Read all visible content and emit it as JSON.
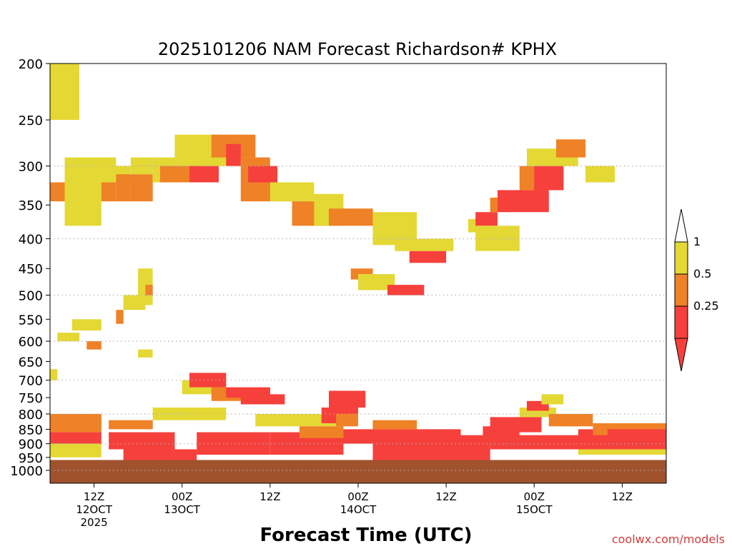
{
  "chart_data": {
    "type": "heatmap",
    "title": "2025101206 NAM Forecast Richardson# KPHX",
    "xlabel": "Forecast Time (UTC)",
    "ylabel": "",
    "credit": "coolwx.com/models",
    "x_range_hours": [
      0,
      84
    ],
    "y_range_hpa": [
      200,
      1000
    ],
    "y_scale": "log",
    "y_ticks": [
      200,
      250,
      300,
      350,
      400,
      450,
      500,
      550,
      600,
      650,
      700,
      750,
      800,
      850,
      900,
      950,
      1000
    ],
    "y_tick_labels": [
      "200",
      "250",
      "300",
      "350",
      "400",
      "450",
      "500",
      "550",
      "600",
      "650",
      "700",
      "750",
      "800",
      "850",
      "900",
      "950",
      "1000"
    ],
    "gridlines_hpa": [
      300,
      400,
      500,
      600,
      700,
      800,
      900,
      1000
    ],
    "x_ticks": [
      {
        "hour": 6,
        "lines": [
          "12Z",
          "12OCT",
          "2025"
        ]
      },
      {
        "hour": 18,
        "lines": [
          "00Z",
          "13OCT"
        ]
      },
      {
        "hour": 30,
        "lines": [
          "12Z"
        ]
      },
      {
        "hour": 42,
        "lines": [
          "00Z",
          "14OCT"
        ]
      },
      {
        "hour": 54,
        "lines": [
          "12Z"
        ]
      },
      {
        "hour": 66,
        "lines": [
          "00Z",
          "15OCT"
        ]
      },
      {
        "hour": 78,
        "lines": [
          "12Z"
        ]
      }
    ],
    "legend": {
      "position": "right",
      "bins": [
        {
          "label": "1",
          "min": 0.5,
          "max": 1,
          "color": "#e4d834"
        },
        {
          "label": "0.5",
          "min": 0.25,
          "max": 0.5,
          "color": "#ef8126"
        },
        {
          "label": "0.25",
          "min": 0,
          "max": 0.25,
          "color": "#f6403c"
        }
      ],
      "upper_cap": {
        "meaning": "> 1",
        "color": "#ffffff"
      },
      "lower_cap": {
        "meaning": "< 0",
        "color": "#f6403c"
      }
    },
    "colors": {
      "low": "#f6403c",
      "mid": "#ef8126",
      "high": "#e4d834",
      "ground": "#a0522d",
      "grid": "#b0b0b0",
      "axis": "#000000",
      "credit": "#d23c3c"
    },
    "cells": [
      [
        0,
        4,
        200,
        250,
        "high"
      ],
      [
        2,
        9,
        290,
        300,
        "high"
      ],
      [
        0,
        2,
        320,
        345,
        "mid"
      ],
      [
        2,
        7,
        300,
        380,
        "high"
      ],
      [
        7,
        11,
        300,
        320,
        "high"
      ],
      [
        7,
        9,
        320,
        345,
        "mid"
      ],
      [
        9,
        11,
        310,
        345,
        "mid"
      ],
      [
        11,
        14,
        290,
        310,
        "high"
      ],
      [
        11,
        14,
        310,
        345,
        "mid"
      ],
      [
        14,
        18,
        290,
        320,
        "high"
      ],
      [
        15,
        20,
        300,
        320,
        "mid"
      ],
      [
        17,
        26,
        265,
        300,
        "high"
      ],
      [
        19,
        23,
        300,
        320,
        "low"
      ],
      [
        22,
        28,
        265,
        290,
        "mid"
      ],
      [
        24,
        26,
        275,
        300,
        "low"
      ],
      [
        26,
        30,
        290,
        320,
        "mid"
      ],
      [
        27,
        31,
        300,
        320,
        "low"
      ],
      [
        26,
        33,
        320,
        345,
        "mid"
      ],
      [
        30,
        34,
        320,
        345,
        "high"
      ],
      [
        33,
        38,
        345,
        380,
        "mid"
      ],
      [
        32,
        36,
        320,
        345,
        "high"
      ],
      [
        36,
        40,
        335,
        380,
        "high"
      ],
      [
        38,
        44,
        355,
        380,
        "mid"
      ],
      [
        44,
        50,
        360,
        410,
        "high"
      ],
      [
        47,
        55,
        400,
        420,
        "high"
      ],
      [
        49,
        54,
        420,
        440,
        "low"
      ],
      [
        41,
        44,
        450,
        470,
        "mid"
      ],
      [
        42,
        47,
        460,
        490,
        "high"
      ],
      [
        46,
        51,
        480,
        500,
        "low"
      ],
      [
        57,
        60,
        370,
        390,
        "high"
      ],
      [
        58,
        61,
        360,
        380,
        "low"
      ],
      [
        58,
        64,
        380,
        420,
        "high"
      ],
      [
        60,
        63,
        340,
        360,
        "mid"
      ],
      [
        61,
        68,
        330,
        360,
        "low"
      ],
      [
        64,
        70,
        300,
        330,
        "mid"
      ],
      [
        66,
        70,
        300,
        330,
        "low"
      ],
      [
        65,
        72,
        280,
        300,
        "high"
      ],
      [
        69,
        73,
        270,
        290,
        "mid"
      ],
      [
        73,
        77,
        300,
        320,
        "high"
      ],
      [
        1,
        4,
        580,
        600,
        "high"
      ],
      [
        3,
        7,
        550,
        575,
        "high"
      ],
      [
        5,
        7,
        600,
        620,
        "mid"
      ],
      [
        9,
        10,
        530,
        560,
        "mid"
      ],
      [
        10,
        13,
        500,
        530,
        "high"
      ],
      [
        12,
        14,
        450,
        520,
        "high"
      ],
      [
        13,
        14,
        480,
        500,
        "mid"
      ],
      [
        12,
        14,
        620,
        640,
        "high"
      ],
      [
        0,
        1,
        670,
        700,
        "high"
      ],
      [
        0,
        7,
        800,
        860,
        "mid"
      ],
      [
        0,
        7,
        860,
        900,
        "low"
      ],
      [
        0,
        7,
        900,
        950,
        "high"
      ],
      [
        8,
        14,
        820,
        850,
        "mid"
      ],
      [
        8,
        17,
        860,
        920,
        "low"
      ],
      [
        10,
        20,
        920,
        960,
        "low"
      ],
      [
        14,
        24,
        780,
        820,
        "high"
      ],
      [
        18,
        24,
        700,
        740,
        "high"
      ],
      [
        19,
        24,
        680,
        720,
        "low"
      ],
      [
        22,
        30,
        720,
        760,
        "mid"
      ],
      [
        24,
        30,
        720,
        750,
        "low"
      ],
      [
        26,
        32,
        740,
        770,
        "low"
      ],
      [
        20,
        30,
        860,
        940,
        "low"
      ],
      [
        28,
        40,
        800,
        840,
        "high"
      ],
      [
        30,
        40,
        860,
        940,
        "low"
      ],
      [
        34,
        40,
        840,
        880,
        "mid"
      ],
      [
        37,
        42,
        780,
        830,
        "low"
      ],
      [
        38,
        43,
        730,
        780,
        "low"
      ],
      [
        39,
        42,
        800,
        840,
        "mid"
      ],
      [
        40,
        44,
        850,
        900,
        "low"
      ],
      [
        44,
        56,
        850,
        960,
        "low"
      ],
      [
        44,
        50,
        820,
        850,
        "mid"
      ],
      [
        54,
        60,
        870,
        960,
        "low"
      ],
      [
        59,
        64,
        840,
        900,
        "low"
      ],
      [
        60,
        67,
        810,
        860,
        "low"
      ],
      [
        64,
        69,
        780,
        810,
        "high"
      ],
      [
        65,
        68,
        760,
        790,
        "low"
      ],
      [
        67,
        70,
        740,
        770,
        "high"
      ],
      [
        68,
        72,
        800,
        840,
        "mid"
      ],
      [
        70,
        74,
        800,
        840,
        "mid"
      ],
      [
        72,
        76,
        850,
        880,
        "low"
      ],
      [
        74,
        84,
        830,
        880,
        "mid"
      ],
      [
        76,
        84,
        850,
        890,
        "low"
      ],
      [
        78,
        84,
        880,
        900,
        "high"
      ],
      [
        60,
        84,
        870,
        920,
        "low"
      ],
      [
        72,
        84,
        920,
        940,
        "high"
      ]
    ]
  }
}
